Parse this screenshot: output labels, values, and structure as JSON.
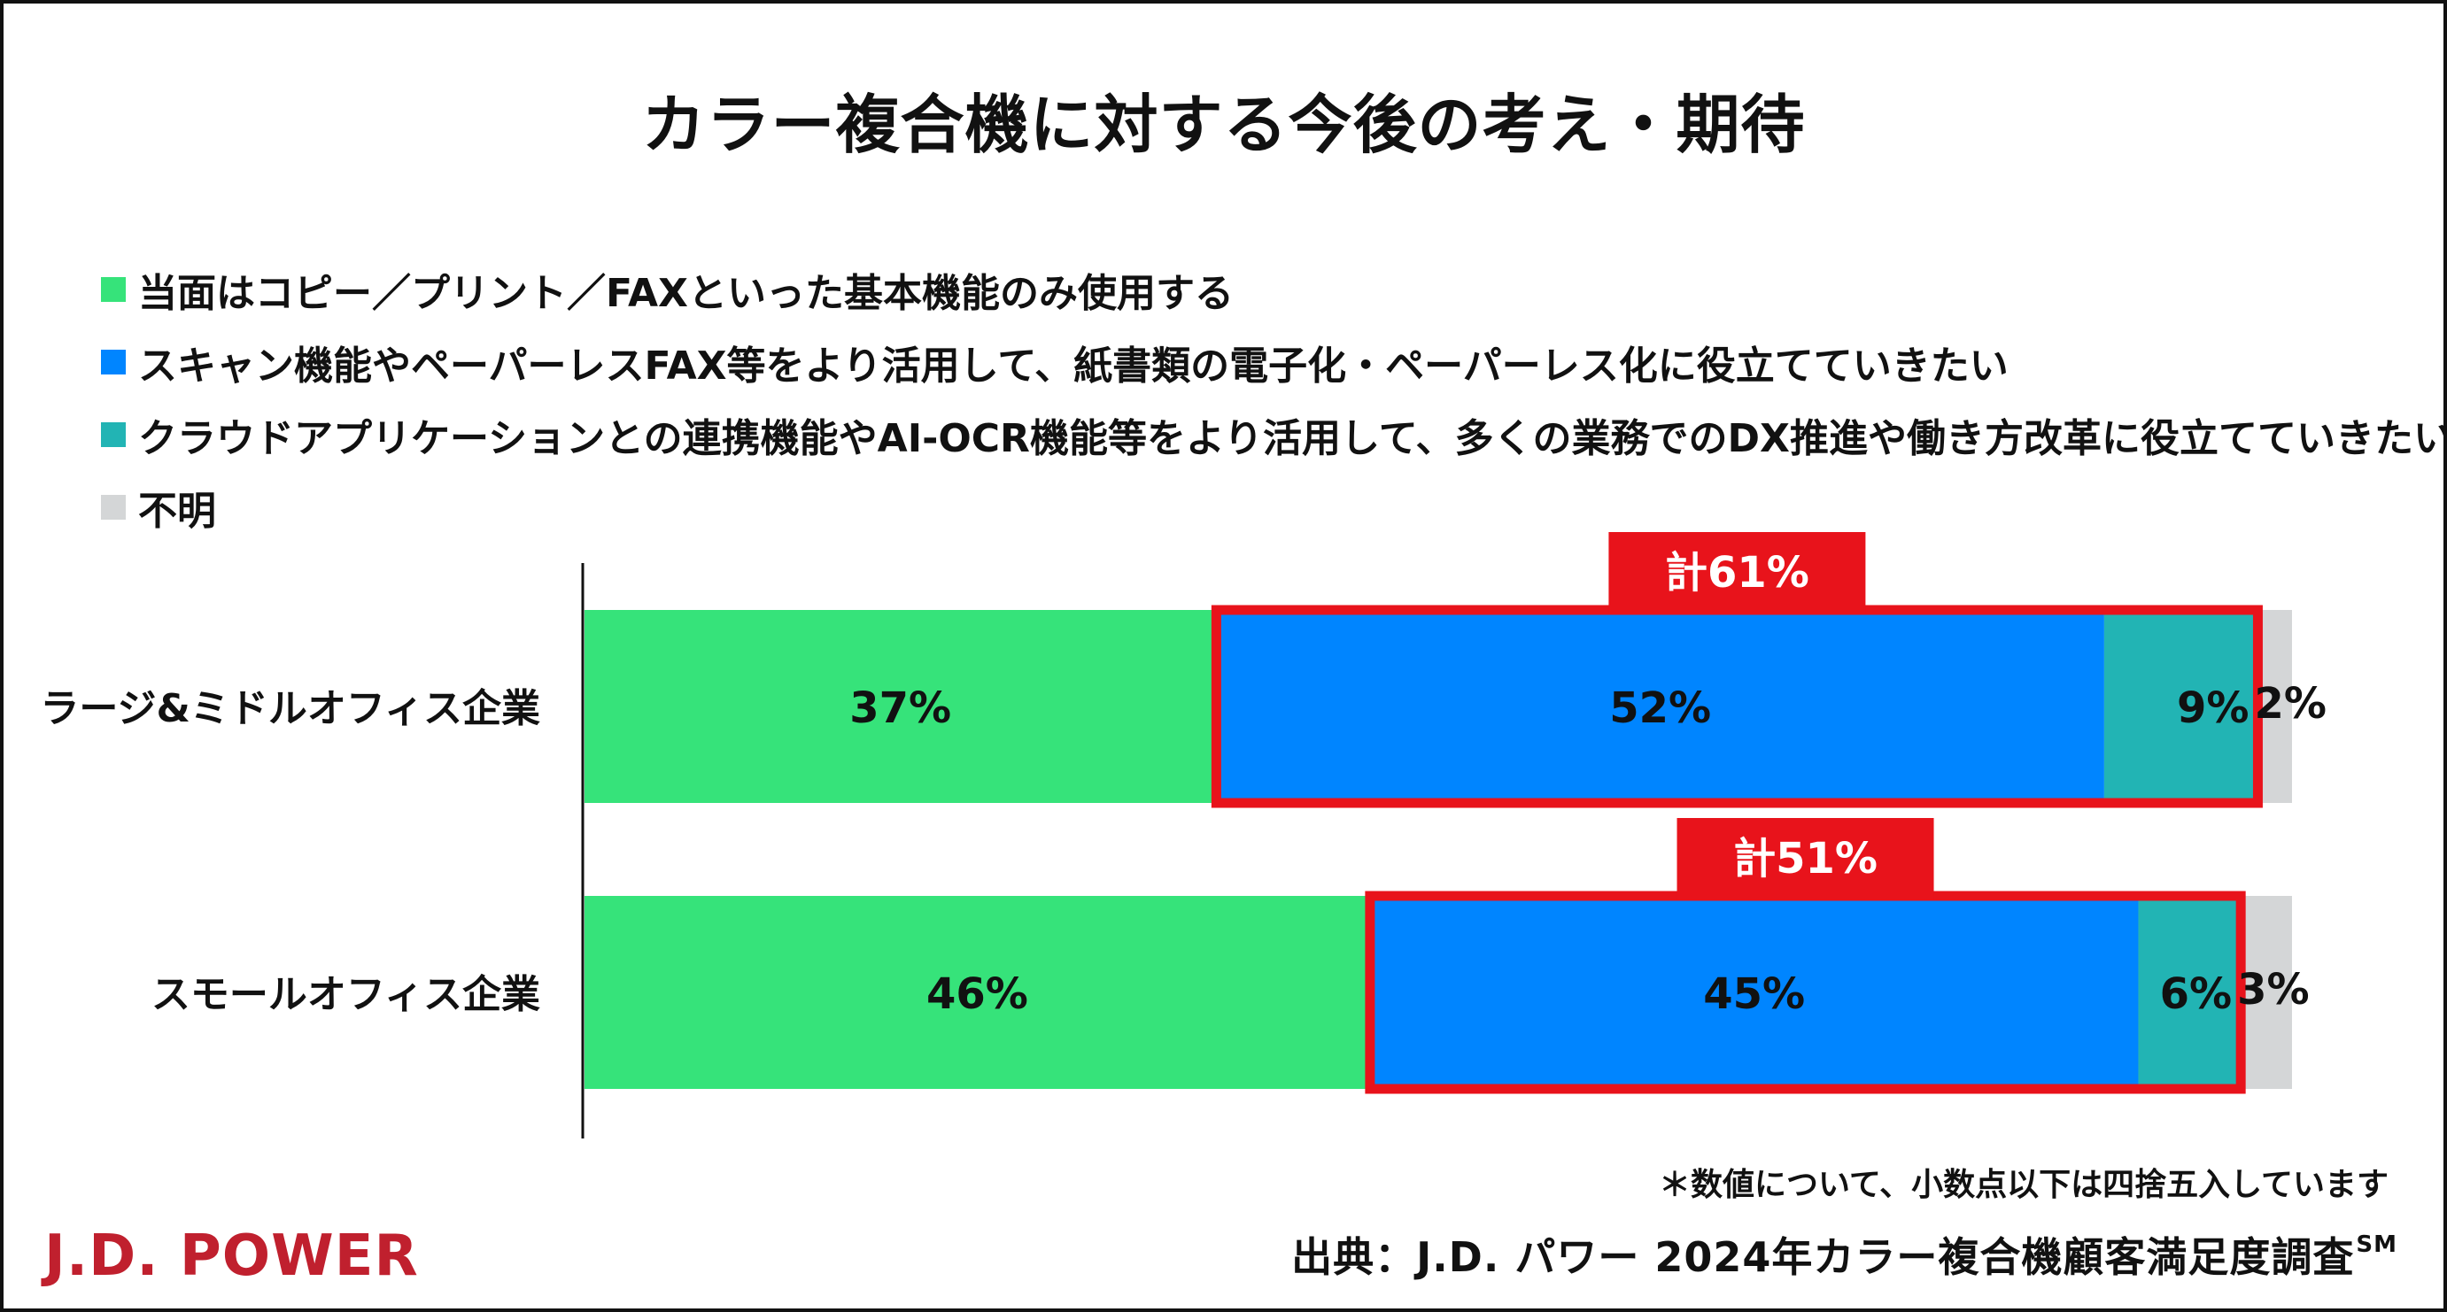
{
  "title": "カラー複合機に対する今後の考え・期待",
  "legend": [
    {
      "label": "当面はコピー／プリント／FAXといった基本機能のみ使用する",
      "color": "#36e37a"
    },
    {
      "label": "スキャン機能やペーパーレスFAX等をより活用して、紙書類の電子化・ペーパーレス化に役立てていきたい",
      "color": "#0085ff"
    },
    {
      "label": "クラウドアプリケーションとの連携機能やAI-OCR機能等をより活用して、多くの業務でのDX推進や働き方改革に役立てていきたい",
      "color": "#22b4b4"
    },
    {
      "label": "不明",
      "color": "#d4d6d7"
    }
  ],
  "chart_data": {
    "type": "bar",
    "orientation": "horizontal",
    "stacked": true,
    "categories": [
      "ラージ&ミドルオフィス企業",
      "スモールオフィス企業"
    ],
    "series": [
      {
        "name": "当面はコピー／プリント／FAXといった基本機能のみ使用する",
        "values": [
          37,
          46
        ],
        "labels": [
          "37%",
          "46%"
        ],
        "color": "#36e37a"
      },
      {
        "name": "スキャン機能やペーパーレスFAX等をより活用して、紙書類の電子化・ペーパーレス化に役立てていきたい",
        "values": [
          52,
          45
        ],
        "labels": [
          "52%",
          "45%"
        ],
        "color": "#0085ff"
      },
      {
        "name": "クラウドアプリケーションとの連携機能やAI-OCR機能等をより活用して、多くの業務でのDX推進や働き方改革に役立てていきたい",
        "values": [
          9,
          6
        ],
        "labels": [
          "9%",
          "6%"
        ],
        "color": "#22b4b4"
      },
      {
        "name": "不明",
        "values": [
          2,
          3
        ],
        "labels": [
          "2%",
          "3%"
        ],
        "color": "#d4d6d7"
      }
    ],
    "totals": [
      "計61%",
      "計51%"
    ],
    "highlight_color": "#e8131b",
    "xlim": [
      0,
      100
    ]
  },
  "note": "＊数値について、小数点以下は四捨五入しています",
  "source": {
    "text": "出典：J.D. パワー 2024年カラー複合機顧客満足度調査",
    "superscript": "SM"
  },
  "logo": "J.D. POWER"
}
